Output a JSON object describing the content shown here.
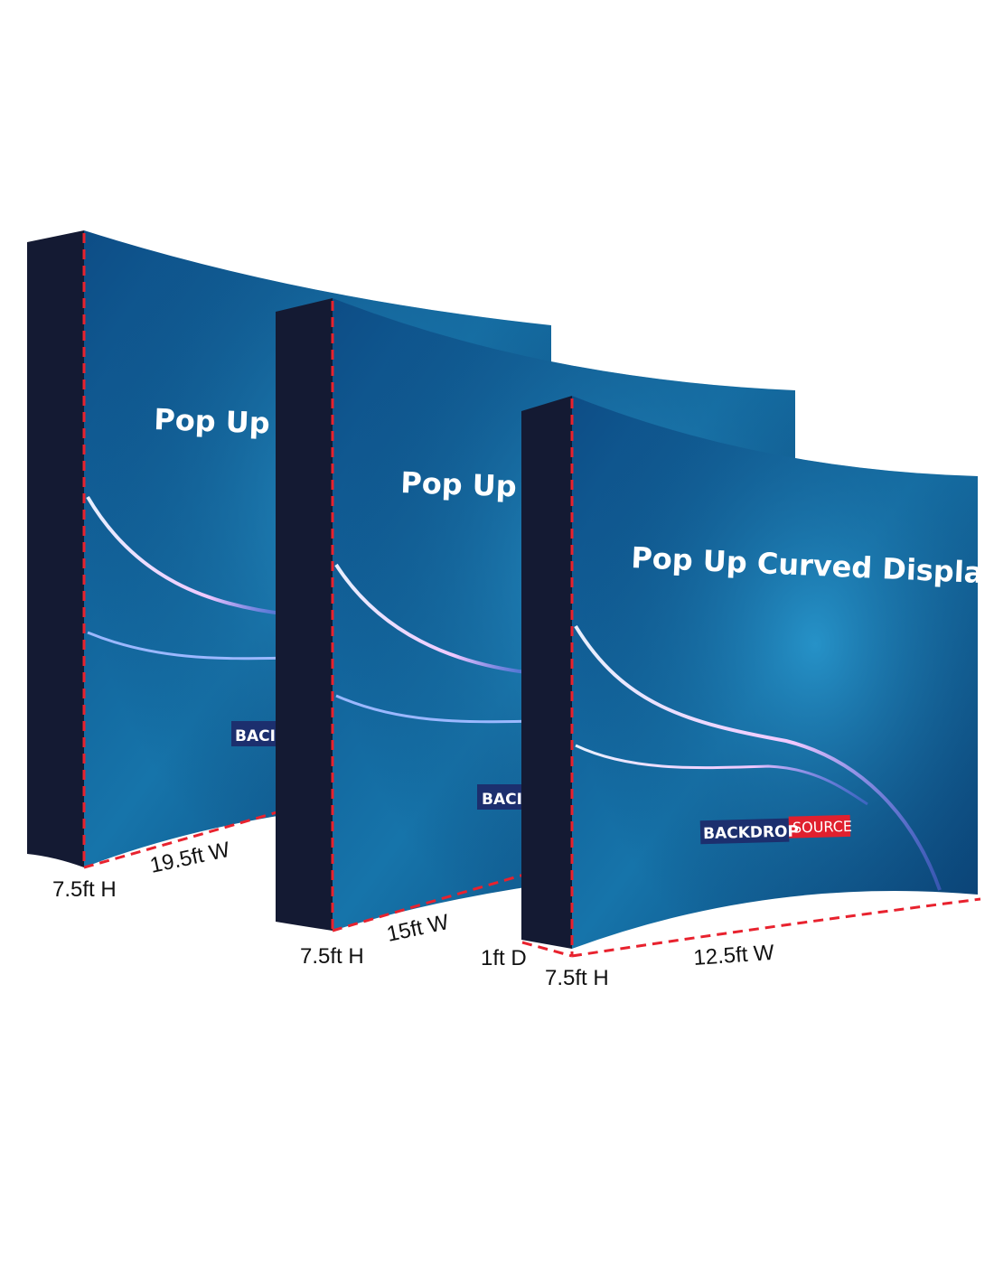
{
  "product_title": "Pop Up Curved Display",
  "brand": {
    "part1": "BACKDROP",
    "part2": "SOURCE",
    "part1_bg": "#1c2f6e",
    "part2_bg": "#e0202e"
  },
  "displays": [
    {
      "title_visible": "Pop Up C",
      "brand_visible": "BACI",
      "height_label": "7.5ft H",
      "width_label": "19.5ft W"
    },
    {
      "title_visible": "Pop Up C",
      "brand_visible": "BACI",
      "height_label": "7.5ft H",
      "width_label": "15ft W",
      "depth_label": "1ft D"
    },
    {
      "title_visible": "Pop Up Curved Display",
      "height_label": "7.5ft H",
      "width_label": "12.5ft W"
    }
  ],
  "colors": {
    "side_panel": "#141a33",
    "face_dark": "#0b3a6e",
    "face_light": "#1a7fb8",
    "dimension_line": "#e8222e"
  }
}
